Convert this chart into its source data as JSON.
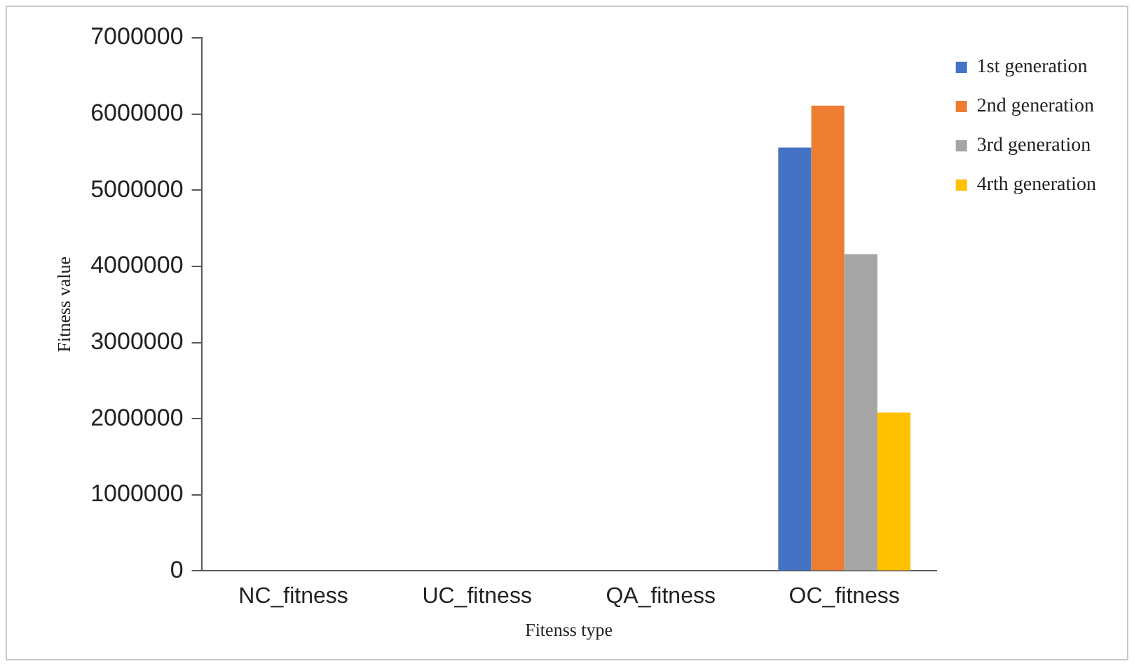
{
  "chart_data": {
    "type": "bar",
    "xlabel": "Fitenss type",
    "ylabel": "Fitness value",
    "categories": [
      "NC_fitness",
      "UC_fitness",
      "QA_fitness",
      "OC_fitness"
    ],
    "series": [
      {
        "name": "1st generation",
        "color": "#4472c4",
        "values": [
          0,
          0,
          0,
          5560000
        ]
      },
      {
        "name": "2nd generation",
        "color": "#ed7d31",
        "values": [
          0,
          0,
          0,
          6110000
        ]
      },
      {
        "name": "3rd generation",
        "color": "#a5a5a5",
        "values": [
          0,
          0,
          0,
          4160000
        ]
      },
      {
        "name": "4rth generation",
        "color": "#ffc000",
        "values": [
          0,
          0,
          0,
          2080000
        ]
      }
    ],
    "ylim": [
      0,
      7000000
    ],
    "yticks": [
      0,
      1000000,
      2000000,
      3000000,
      4000000,
      5000000,
      6000000,
      7000000
    ],
    "grid": false,
    "legend": "right"
  }
}
